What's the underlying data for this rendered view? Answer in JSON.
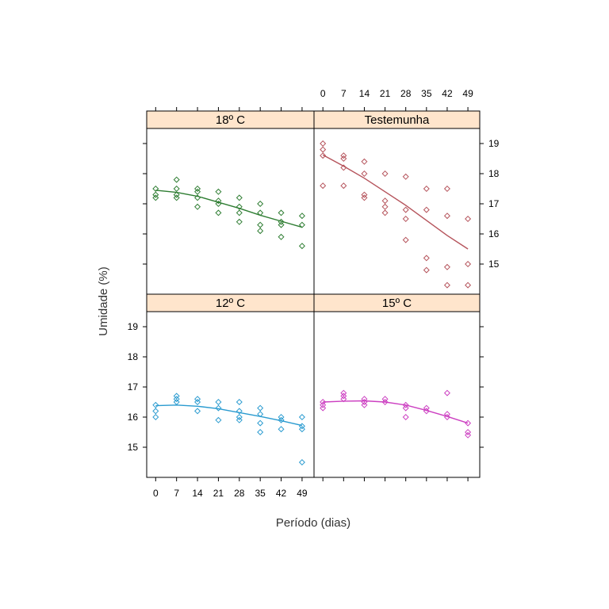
{
  "chart_data": {
    "type": "scatter",
    "layout": "2x2 lattice (trellis), shared axes",
    "xlabel": "Período (dias)",
    "ylabel": "Umidade (%)",
    "xticks": [
      0,
      7,
      14,
      21,
      28,
      35,
      42,
      49
    ],
    "yticks": [
      15,
      16,
      17,
      18,
      19
    ],
    "xlim": [
      -3,
      53
    ],
    "ylim": [
      14.0,
      19.5
    ],
    "strip_color": "#ffe5cc",
    "panels": [
      {
        "id": "p18",
        "strip": "18º C",
        "color": "#2e7d32",
        "points": [
          {
            "x": 0,
            "y": 17.5
          },
          {
            "x": 0,
            "y": 17.3
          },
          {
            "x": 0,
            "y": 17.2
          },
          {
            "x": 7,
            "y": 17.8
          },
          {
            "x": 7,
            "y": 17.5
          },
          {
            "x": 7,
            "y": 17.3
          },
          {
            "x": 7,
            "y": 17.2
          },
          {
            "x": 14,
            "y": 17.5
          },
          {
            "x": 14,
            "y": 17.4
          },
          {
            "x": 14,
            "y": 17.2
          },
          {
            "x": 14,
            "y": 16.9
          },
          {
            "x": 21,
            "y": 17.4
          },
          {
            "x": 21,
            "y": 17.1
          },
          {
            "x": 21,
            "y": 17.0
          },
          {
            "x": 21,
            "y": 16.7
          },
          {
            "x": 28,
            "y": 17.2
          },
          {
            "x": 28,
            "y": 16.9
          },
          {
            "x": 28,
            "y": 16.7
          },
          {
            "x": 28,
            "y": 16.4
          },
          {
            "x": 35,
            "y": 17.0
          },
          {
            "x": 35,
            "y": 16.7
          },
          {
            "x": 35,
            "y": 16.3
          },
          {
            "x": 35,
            "y": 16.1
          },
          {
            "x": 42,
            "y": 16.7
          },
          {
            "x": 42,
            "y": 16.4
          },
          {
            "x": 42,
            "y": 16.3
          },
          {
            "x": 42,
            "y": 15.9
          },
          {
            "x": 49,
            "y": 16.6
          },
          {
            "x": 49,
            "y": 16.3
          },
          {
            "x": 49,
            "y": 15.6
          }
        ],
        "fit": [
          {
            "x": 0,
            "y": 17.45
          },
          {
            "x": 7,
            "y": 17.38
          },
          {
            "x": 14,
            "y": 17.25
          },
          {
            "x": 21,
            "y": 17.05
          },
          {
            "x": 28,
            "y": 16.85
          },
          {
            "x": 35,
            "y": 16.62
          },
          {
            "x": 42,
            "y": 16.42
          },
          {
            "x": 49,
            "y": 16.22
          }
        ]
      },
      {
        "id": "ptest",
        "strip": "Testemunha",
        "color": "#b5535b",
        "points": [
          {
            "x": 0,
            "y": 19.0
          },
          {
            "x": 0,
            "y": 18.8
          },
          {
            "x": 0,
            "y": 18.6
          },
          {
            "x": 0,
            "y": 17.6
          },
          {
            "x": 7,
            "y": 18.6
          },
          {
            "x": 7,
            "y": 18.5
          },
          {
            "x": 7,
            "y": 18.2
          },
          {
            "x": 7,
            "y": 17.6
          },
          {
            "x": 14,
            "y": 18.4
          },
          {
            "x": 14,
            "y": 18.0
          },
          {
            "x": 14,
            "y": 17.3
          },
          {
            "x": 14,
            "y": 17.2
          },
          {
            "x": 21,
            "y": 18.0
          },
          {
            "x": 21,
            "y": 17.1
          },
          {
            "x": 21,
            "y": 16.9
          },
          {
            "x": 21,
            "y": 16.7
          },
          {
            "x": 28,
            "y": 17.9
          },
          {
            "x": 28,
            "y": 16.8
          },
          {
            "x": 28,
            "y": 16.5
          },
          {
            "x": 28,
            "y": 15.8
          },
          {
            "x": 35,
            "y": 17.5
          },
          {
            "x": 35,
            "y": 16.8
          },
          {
            "x": 35,
            "y": 15.2
          },
          {
            "x": 35,
            "y": 14.8
          },
          {
            "x": 42,
            "y": 17.5
          },
          {
            "x": 42,
            "y": 16.6
          },
          {
            "x": 42,
            "y": 14.9
          },
          {
            "x": 42,
            "y": 14.3
          },
          {
            "x": 49,
            "y": 16.5
          },
          {
            "x": 49,
            "y": 15.0
          },
          {
            "x": 49,
            "y": 14.3
          }
        ],
        "fit": [
          {
            "x": 0,
            "y": 18.62
          },
          {
            "x": 7,
            "y": 18.25
          },
          {
            "x": 14,
            "y": 17.85
          },
          {
            "x": 21,
            "y": 17.4
          },
          {
            "x": 28,
            "y": 16.95
          },
          {
            "x": 35,
            "y": 16.45
          },
          {
            "x": 42,
            "y": 15.95
          },
          {
            "x": 49,
            "y": 15.5
          }
        ]
      },
      {
        "id": "p12",
        "strip": "12º C",
        "color": "#2a9bd0",
        "points": [
          {
            "x": 0,
            "y": 16.4
          },
          {
            "x": 0,
            "y": 16.2
          },
          {
            "x": 0,
            "y": 16.0
          },
          {
            "x": 7,
            "y": 16.7
          },
          {
            "x": 7,
            "y": 16.6
          },
          {
            "x": 7,
            "y": 16.5
          },
          {
            "x": 14,
            "y": 16.6
          },
          {
            "x": 14,
            "y": 16.5
          },
          {
            "x": 14,
            "y": 16.2
          },
          {
            "x": 21,
            "y": 16.5
          },
          {
            "x": 21,
            "y": 16.3
          },
          {
            "x": 21,
            "y": 15.9
          },
          {
            "x": 28,
            "y": 16.5
          },
          {
            "x": 28,
            "y": 16.2
          },
          {
            "x": 28,
            "y": 16.0
          },
          {
            "x": 28,
            "y": 15.9
          },
          {
            "x": 35,
            "y": 16.3
          },
          {
            "x": 35,
            "y": 16.1
          },
          {
            "x": 35,
            "y": 15.8
          },
          {
            "x": 35,
            "y": 15.5
          },
          {
            "x": 42,
            "y": 16.0
          },
          {
            "x": 42,
            "y": 15.9
          },
          {
            "x": 42,
            "y": 15.6
          },
          {
            "x": 49,
            "y": 16.0
          },
          {
            "x": 49,
            "y": 15.7
          },
          {
            "x": 49,
            "y": 15.6
          },
          {
            "x": 49,
            "y": 14.5
          }
        ],
        "fit": [
          {
            "x": 0,
            "y": 16.38
          },
          {
            "x": 7,
            "y": 16.4
          },
          {
            "x": 14,
            "y": 16.36
          },
          {
            "x": 21,
            "y": 16.28
          },
          {
            "x": 28,
            "y": 16.15
          },
          {
            "x": 35,
            "y": 16.02
          },
          {
            "x": 42,
            "y": 15.88
          },
          {
            "x": 49,
            "y": 15.72
          }
        ]
      },
      {
        "id": "p15",
        "strip": "15º C",
        "color": "#cc3fc1",
        "points": [
          {
            "x": 0,
            "y": 16.5
          },
          {
            "x": 0,
            "y": 16.4
          },
          {
            "x": 0,
            "y": 16.3
          },
          {
            "x": 7,
            "y": 16.8
          },
          {
            "x": 7,
            "y": 16.7
          },
          {
            "x": 7,
            "y": 16.6
          },
          {
            "x": 14,
            "y": 16.6
          },
          {
            "x": 14,
            "y": 16.5
          },
          {
            "x": 14,
            "y": 16.4
          },
          {
            "x": 21,
            "y": 16.6
          },
          {
            "x": 21,
            "y": 16.5
          },
          {
            "x": 28,
            "y": 16.4
          },
          {
            "x": 28,
            "y": 16.3
          },
          {
            "x": 28,
            "y": 16.0
          },
          {
            "x": 35,
            "y": 16.3
          },
          {
            "x": 35,
            "y": 16.2
          },
          {
            "x": 42,
            "y": 16.8
          },
          {
            "x": 42,
            "y": 16.1
          },
          {
            "x": 42,
            "y": 16.0
          },
          {
            "x": 49,
            "y": 15.8
          },
          {
            "x": 49,
            "y": 15.5
          },
          {
            "x": 49,
            "y": 15.4
          }
        ],
        "fit": [
          {
            "x": 0,
            "y": 16.5
          },
          {
            "x": 7,
            "y": 16.53
          },
          {
            "x": 14,
            "y": 16.54
          },
          {
            "x": 21,
            "y": 16.5
          },
          {
            "x": 28,
            "y": 16.4
          },
          {
            "x": 35,
            "y": 16.22
          },
          {
            "x": 42,
            "y": 16.02
          },
          {
            "x": 49,
            "y": 15.8
          }
        ]
      }
    ]
  }
}
